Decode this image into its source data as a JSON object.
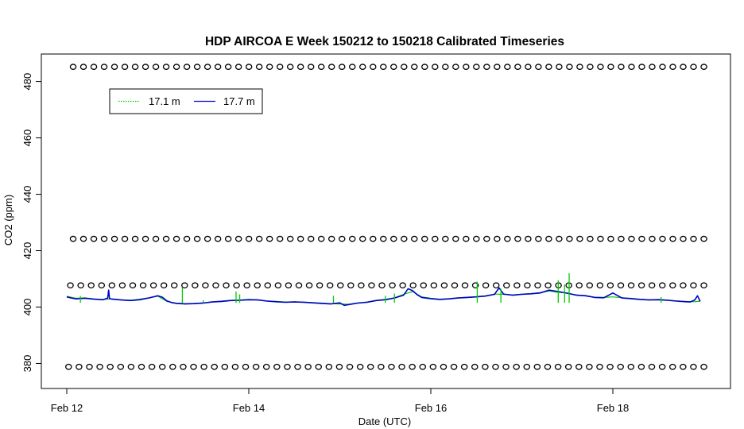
{
  "chart_data": {
    "type": "line",
    "title": "HDP AIRCOA E  Week 150212 to 150218  Calibrated Timeseries",
    "xlabel": "Date (UTC)",
    "ylabel": "CO2 (ppm)",
    "xlim": [
      0.0,
      7.3
    ],
    "ylim": [
      371.0,
      490.0
    ],
    "x_ticks": [
      {
        "value": 0,
        "label": "Feb 12"
      },
      {
        "value": 2,
        "label": "Feb 14"
      },
      {
        "value": 4,
        "label": "Feb 16"
      },
      {
        "value": 6,
        "label": "Feb 18"
      }
    ],
    "y_ticks": [
      380,
      400,
      420,
      440,
      460,
      480
    ],
    "legend": {
      "placement": "top-left",
      "entries": [
        {
          "label": "17.1 m",
          "color": "#00cc00",
          "style": "dotted"
        },
        {
          "label": "17.7 m",
          "color": "#0000cc",
          "style": "solid"
        }
      ]
    },
    "reference_points": {
      "marker": "circle",
      "levels": [
        {
          "y": 485.2,
          "x_start": 0.07,
          "x_end": 7.0,
          "count": 62
        },
        {
          "y": 424.2,
          "x_start": 0.07,
          "x_end": 7.0,
          "count": 62
        },
        {
          "y": 407.7,
          "x_start": 0.04,
          "x_end": 7.0,
          "count": 62
        },
        {
          "y": 378.8,
          "x_start": 0.02,
          "x_end": 7.0,
          "count": 62
        }
      ]
    },
    "series": [
      {
        "name": "17.7 m",
        "color": "#0000cc",
        "x": [
          0.0,
          0.05,
          0.1,
          0.2,
          0.3,
          0.4,
          0.45,
          0.46,
          0.47,
          0.5,
          0.6,
          0.7,
          0.8,
          0.9,
          1.0,
          1.05,
          1.1,
          1.15,
          1.2,
          1.25,
          1.3,
          1.4,
          1.5,
          1.6,
          1.7,
          1.8,
          1.9,
          2.0,
          2.1,
          2.2,
          2.3,
          2.4,
          2.5,
          2.6,
          2.7,
          2.8,
          2.9,
          3.0,
          3.05,
          3.1,
          3.2,
          3.3,
          3.4,
          3.5,
          3.6,
          3.7,
          3.75,
          3.8,
          3.85,
          3.9,
          4.0,
          4.1,
          4.2,
          4.3,
          4.4,
          4.5,
          4.6,
          4.7,
          4.75,
          4.8,
          4.9,
          5.0,
          5.1,
          5.2,
          5.3,
          5.4,
          5.5,
          5.6,
          5.7,
          5.8,
          5.9,
          6.0,
          6.1,
          6.2,
          6.3,
          6.4,
          6.5,
          6.6,
          6.7,
          6.8,
          6.85,
          6.9,
          6.93,
          6.96
        ],
        "values": [
          403.6,
          403.2,
          402.9,
          403.1,
          402.8,
          402.6,
          403.2,
          406.0,
          403.0,
          402.8,
          402.5,
          402.3,
          402.6,
          403.2,
          404.0,
          403.5,
          402.2,
          401.6,
          401.3,
          401.2,
          401.1,
          401.2,
          401.4,
          401.8,
          402.0,
          402.3,
          402.4,
          402.6,
          402.5,
          402.1,
          401.9,
          401.7,
          401.8,
          401.7,
          401.5,
          401.3,
          401.1,
          401.5,
          400.6,
          400.9,
          401.4,
          401.7,
          402.3,
          402.6,
          403.2,
          404.2,
          406.5,
          405.8,
          404.4,
          403.4,
          403.0,
          402.7,
          402.9,
          403.2,
          403.4,
          403.6,
          403.9,
          404.5,
          406.8,
          404.6,
          404.2,
          404.5,
          404.7,
          405.0,
          406.0,
          405.5,
          404.9,
          404.2,
          404.0,
          403.4,
          403.3,
          405.0,
          403.2,
          403.0,
          402.7,
          402.5,
          402.6,
          402.4,
          402.1,
          401.9,
          401.8,
          402.5,
          404.0,
          402.0
        ]
      },
      {
        "name": "17.1 m",
        "color": "#00cc00",
        "x": [
          0.0,
          0.1,
          0.2,
          0.3,
          0.4,
          0.5,
          0.6,
          0.7,
          0.8,
          0.9,
          1.0,
          1.1,
          1.2,
          1.3,
          1.4,
          1.5,
          1.6,
          1.7,
          1.8,
          1.9,
          2.0,
          2.1,
          2.2,
          2.3,
          2.4,
          2.5,
          2.6,
          2.7,
          2.8,
          2.9,
          3.0,
          3.1,
          3.2,
          3.3,
          3.4,
          3.5,
          3.6,
          3.7,
          3.8,
          3.9,
          4.0,
          4.1,
          4.2,
          4.3,
          4.4,
          4.5,
          4.6,
          4.7,
          4.8,
          4.9,
          5.0,
          5.1,
          5.2,
          5.3,
          5.4,
          5.5,
          5.6,
          5.7,
          5.8,
          5.9,
          6.0,
          6.1,
          6.2,
          6.3,
          6.4,
          6.5,
          6.6,
          6.7,
          6.8,
          6.9,
          6.96
        ],
        "values": [
          403.8,
          403.1,
          403.3,
          402.9,
          402.7,
          402.9,
          402.6,
          402.4,
          402.8,
          403.3,
          403.9,
          402.0,
          401.4,
          401.2,
          401.3,
          401.5,
          401.9,
          402.1,
          402.4,
          402.5,
          402.7,
          402.6,
          402.2,
          402.0,
          401.8,
          401.9,
          401.8,
          401.6,
          401.4,
          401.2,
          401.1,
          401.0,
          401.5,
          401.8,
          402.4,
          402.7,
          403.3,
          404.5,
          405.5,
          403.6,
          403.1,
          402.8,
          403.0,
          403.3,
          403.5,
          403.7,
          404.0,
          404.6,
          404.5,
          404.3,
          404.6,
          404.8,
          405.1,
          405.7,
          405.2,
          405.0,
          404.3,
          404.1,
          403.5,
          403.4,
          403.6,
          403.3,
          403.1,
          402.8,
          402.6,
          402.7,
          402.5,
          402.2,
          402.0,
          401.9,
          402.1
        ]
      }
    ],
    "spikes_17_1m": [
      {
        "x": 0.15,
        "y": 403.9
      },
      {
        "x": 1.27,
        "y": 407.0
      },
      {
        "x": 1.5,
        "y": 402.4
      },
      {
        "x": 1.86,
        "y": 405.5
      },
      {
        "x": 1.9,
        "y": 404.5
      },
      {
        "x": 2.93,
        "y": 404.0
      },
      {
        "x": 3.5,
        "y": 404.0
      },
      {
        "x": 3.6,
        "y": 404.8
      },
      {
        "x": 4.51,
        "y": 409.0
      },
      {
        "x": 4.77,
        "y": 406.5
      },
      {
        "x": 5.4,
        "y": 409.5
      },
      {
        "x": 5.47,
        "y": 408.0
      },
      {
        "x": 5.52,
        "y": 412.0
      },
      {
        "x": 6.53,
        "y": 403.5
      }
    ]
  }
}
